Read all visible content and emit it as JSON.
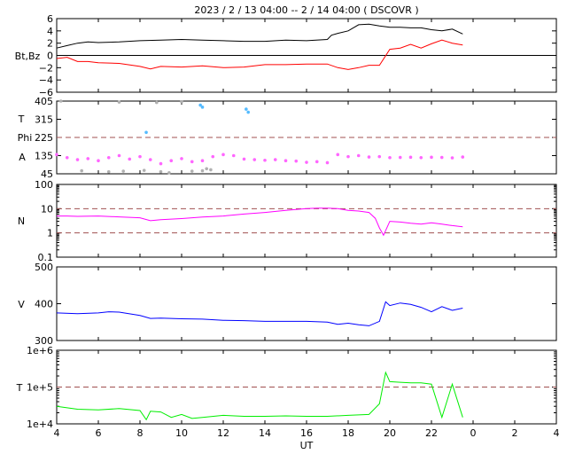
{
  "title": "2023 /  2 / 13   04:00 --  2 / 14   04:00 ( DSCOVR )",
  "x_axis": {
    "label": "UT",
    "ticks": [
      "4",
      "6",
      "8",
      "10",
      "12",
      "14",
      "16",
      "18",
      "20",
      "22",
      "0",
      "2",
      "4"
    ],
    "range_hours": [
      4,
      28
    ]
  },
  "colors": {
    "bt": "#000000",
    "bz": "#ff0000",
    "ref": "#a05050",
    "angle_main": "#ff66ff",
    "angle_grey": "#b0b0b0",
    "angle_cyan": "#55bbff",
    "density": "#ff00ff",
    "speed": "#0000ff",
    "temperature": "#00ee00"
  },
  "chart_data": [
    {
      "type": "line",
      "panel": "magnetic-field",
      "ylabel": "Bt,Bz",
      "ylim": [
        -6,
        6
      ],
      "ytick_labels": [
        "6",
        "4",
        "2",
        "0",
        "−2",
        "−4",
        "−6"
      ],
      "reference_lines": [
        0
      ],
      "series": [
        {
          "name": "Bt",
          "x": [
            4.0,
            4.5,
            5.0,
            5.5,
            6.0,
            7.0,
            8.0,
            9.0,
            10.0,
            11.0,
            12.0,
            13.0,
            14.0,
            15.0,
            16.0,
            17.0,
            17.2,
            17.5,
            18.0,
            18.5,
            19.0,
            19.5,
            20.0,
            20.5,
            21.0,
            21.5,
            22.0,
            22.5,
            23.0,
            23.5
          ],
          "y": [
            1.2,
            1.6,
            2.0,
            2.2,
            2.1,
            2.2,
            2.4,
            2.5,
            2.6,
            2.5,
            2.4,
            2.3,
            2.3,
            2.5,
            2.4,
            2.6,
            3.3,
            3.6,
            4.0,
            5.0,
            5.1,
            4.8,
            4.6,
            4.6,
            4.5,
            4.5,
            4.2,
            4.0,
            4.3,
            3.5
          ]
        },
        {
          "name": "Bz",
          "x": [
            4.0,
            4.5,
            5.0,
            5.5,
            6.0,
            7.0,
            8.0,
            8.5,
            9.0,
            10.0,
            11.0,
            12.0,
            13.0,
            14.0,
            15.0,
            16.0,
            17.0,
            17.5,
            18.0,
            18.5,
            19.0,
            19.5,
            20.0,
            20.5,
            21.0,
            21.5,
            22.0,
            22.5,
            23.0,
            23.5
          ],
          "y": [
            -0.5,
            -0.3,
            -1.0,
            -1.0,
            -1.2,
            -1.3,
            -1.8,
            -2.2,
            -1.8,
            -1.9,
            -1.7,
            -2.0,
            -1.9,
            -1.5,
            -1.5,
            -1.4,
            -1.4,
            -2.0,
            -2.3,
            -2.0,
            -1.6,
            -1.6,
            1.0,
            1.2,
            1.8,
            1.2,
            1.9,
            2.5,
            2.0,
            1.7
          ]
        }
      ]
    },
    {
      "type": "scatter",
      "panel": "angles",
      "ylabel_lines": [
        "T",
        "Phi",
        "A"
      ],
      "ylim": [
        45,
        405
      ],
      "ytick_labels": [
        "405",
        "315",
        "225",
        "135",
        "45"
      ],
      "reference_lines": [
        225
      ],
      "series": [
        {
          "x": [
            4.0,
            4.5,
            5.0,
            5.5,
            6.0,
            6.5,
            7.0,
            7.5,
            8.0,
            8.5,
            9.0,
            9.5,
            10.0,
            10.5,
            11.0,
            11.5,
            12.0,
            12.5,
            13.0,
            13.5,
            14.0,
            14.5,
            15.0,
            15.5,
            16.0,
            16.5,
            17.0,
            17.5,
            18.0,
            18.5,
            19.0,
            19.5,
            20.0,
            20.5,
            21.0,
            21.5,
            22.0,
            22.5,
            23.0,
            23.5
          ],
          "y": [
            140,
            125,
            115,
            120,
            110,
            125,
            135,
            118,
            130,
            115,
            95,
            110,
            120,
            105,
            110,
            130,
            140,
            135,
            118,
            115,
            112,
            115,
            110,
            108,
            102,
            105,
            100,
            140,
            130,
            135,
            128,
            130,
            125,
            126,
            127,
            125,
            127,
            126,
            124,
            128
          ]
        },
        {
          "x": [
            5.2,
            6.5,
            7.2,
            8.2,
            9.0,
            9.4,
            10.5,
            11.0,
            11.2,
            11.4,
            4.2,
            7.0,
            8.8,
            10.0
          ],
          "y": [
            60,
            55,
            58,
            62,
            55,
            50,
            58,
            60,
            70,
            65,
            405,
            400,
            398,
            402
          ]
        },
        {
          "x": [
            8.3,
            10.9,
            11.0,
            13.1,
            13.2
          ],
          "y": [
            250,
            385,
            375,
            365,
            350
          ]
        }
      ]
    },
    {
      "type": "line",
      "panel": "density",
      "ylabel": "N",
      "scale": "log",
      "ylim": [
        0.1,
        100
      ],
      "ytick_labels": [
        "100",
        "10",
        "1",
        "0.1"
      ],
      "reference_lines": [
        10,
        1
      ],
      "series": [
        {
          "x": [
            4.0,
            4.5,
            5.0,
            6.0,
            7.0,
            8.0,
            8.5,
            9.0,
            10.0,
            11.0,
            12.0,
            13.0,
            14.0,
            15.0,
            16.0,
            16.5,
            17.0,
            17.5,
            18.0,
            18.5,
            19.0,
            19.3,
            19.5,
            19.7,
            20.0,
            20.5,
            21.0,
            21.5,
            22.0,
            22.5,
            23.0,
            23.5
          ],
          "y": [
            5.0,
            5.0,
            4.8,
            5.0,
            4.6,
            4.2,
            3.2,
            3.5,
            3.9,
            4.5,
            5.0,
            6.0,
            7.0,
            8.5,
            10.0,
            10.5,
            10.5,
            10.0,
            8.5,
            8.0,
            7.0,
            4.0,
            1.6,
            0.8,
            3.0,
            2.8,
            2.5,
            2.3,
            2.6,
            2.3,
            2.0,
            1.8
          ]
        }
      ]
    },
    {
      "type": "line",
      "panel": "speed",
      "ylabel": "V",
      "ylim": [
        300,
        500
      ],
      "ytick_labels": [
        "500",
        "400",
        "300"
      ],
      "series": [
        {
          "x": [
            4.0,
            5.0,
            6.0,
            6.5,
            7.0,
            8.0,
            8.5,
            9.0,
            10.0,
            11.0,
            12.0,
            13.0,
            14.0,
            15.0,
            16.0,
            17.0,
            17.5,
            18.0,
            18.5,
            19.0,
            19.5,
            19.8,
            20.0,
            20.5,
            21.0,
            21.5,
            22.0,
            22.5,
            23.0,
            23.5
          ],
          "y": [
            375,
            373,
            375,
            378,
            377,
            368,
            360,
            361,
            359,
            358,
            355,
            354,
            352,
            352,
            352,
            350,
            344,
            347,
            343,
            340,
            352,
            405,
            395,
            402,
            398,
            390,
            378,
            392,
            382,
            388
          ]
        }
      ]
    },
    {
      "type": "line",
      "panel": "temperature",
      "ylabel": "T",
      "scale": "log",
      "ylim": [
        10000,
        1000000
      ],
      "ytick_labels": [
        "1e+6",
        "1e+5",
        "1e+4"
      ],
      "reference_lines": [
        100000
      ],
      "series": [
        {
          "x": [
            4.0,
            5.0,
            6.0,
            7.0,
            8.0,
            8.3,
            8.5,
            9.0,
            9.5,
            10.0,
            10.5,
            11.0,
            12.0,
            13.0,
            14.0,
            15.0,
            16.0,
            17.0,
            18.0,
            19.0,
            19.5,
            19.8,
            20.0,
            20.5,
            21.0,
            21.5,
            22.0,
            22.5,
            23.0,
            23.5
          ],
          "y": [
            30000,
            25000,
            24000,
            26000,
            23000,
            13000,
            22000,
            21000,
            15000,
            18000,
            14000,
            15000,
            17000,
            16000,
            16000,
            16500,
            16000,
            16000,
            17000,
            18000,
            35000,
            250000,
            140000,
            135000,
            130000,
            130000,
            120000,
            15000,
            120000,
            15000
          ]
        }
      ]
    }
  ]
}
